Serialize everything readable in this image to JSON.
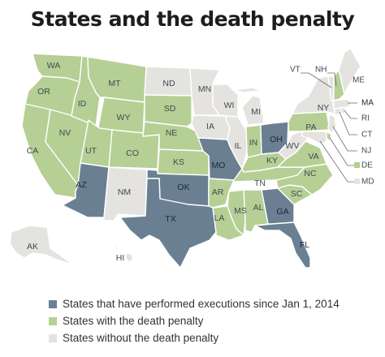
{
  "title": "States and the death penalty",
  "colors": {
    "executions": "#6a7f92",
    "death_penalty": "#b6cf94",
    "no_death_penalty": "#e4e3df",
    "background": "#ffffff",
    "border": "#ffffff"
  },
  "legend": [
    {
      "key": "executions",
      "label": "States that have performed executions since Jan 1, 2014"
    },
    {
      "key": "death_penalty",
      "label": "States with the death penalty"
    },
    {
      "key": "no_death_penalty",
      "label": "States without the death penalty"
    }
  ],
  "states": {
    "WA": "death_penalty",
    "OR": "death_penalty",
    "CA": "death_penalty",
    "NV": "death_penalty",
    "ID": "death_penalty",
    "MT": "death_penalty",
    "WY": "death_penalty",
    "UT": "death_penalty",
    "AZ": "executions",
    "CO": "death_penalty",
    "NM": "no_death_penalty",
    "ND": "no_death_penalty",
    "SD": "death_penalty",
    "NE": "death_penalty",
    "KS": "death_penalty",
    "OK": "executions",
    "TX": "executions",
    "MN": "no_death_penalty",
    "IA": "no_death_penalty",
    "MO": "executions",
    "AR": "death_penalty",
    "LA": "death_penalty",
    "WI": "no_death_penalty",
    "IL": "no_death_penalty",
    "MI": "no_death_penalty",
    "IN": "death_penalty",
    "OH": "executions",
    "KY": "death_penalty",
    "TN": "death_penalty",
    "MS": "death_penalty",
    "AL": "death_penalty",
    "GA": "executions",
    "FL": "executions",
    "SC": "death_penalty",
    "NC": "death_penalty",
    "VA": "death_penalty",
    "WV": "no_death_penalty",
    "PA": "death_penalty",
    "NY": "no_death_penalty",
    "NJ": "no_death_penalty",
    "DE": "death_penalty",
    "MD": "no_death_penalty",
    "CT": "no_death_penalty",
    "RI": "no_death_penalty",
    "MA": "no_death_penalty",
    "VT": "no_death_penalty",
    "NH": "death_penalty",
    "ME": "no_death_penalty",
    "AK": "no_death_penalty",
    "HI": "no_death_penalty"
  }
}
